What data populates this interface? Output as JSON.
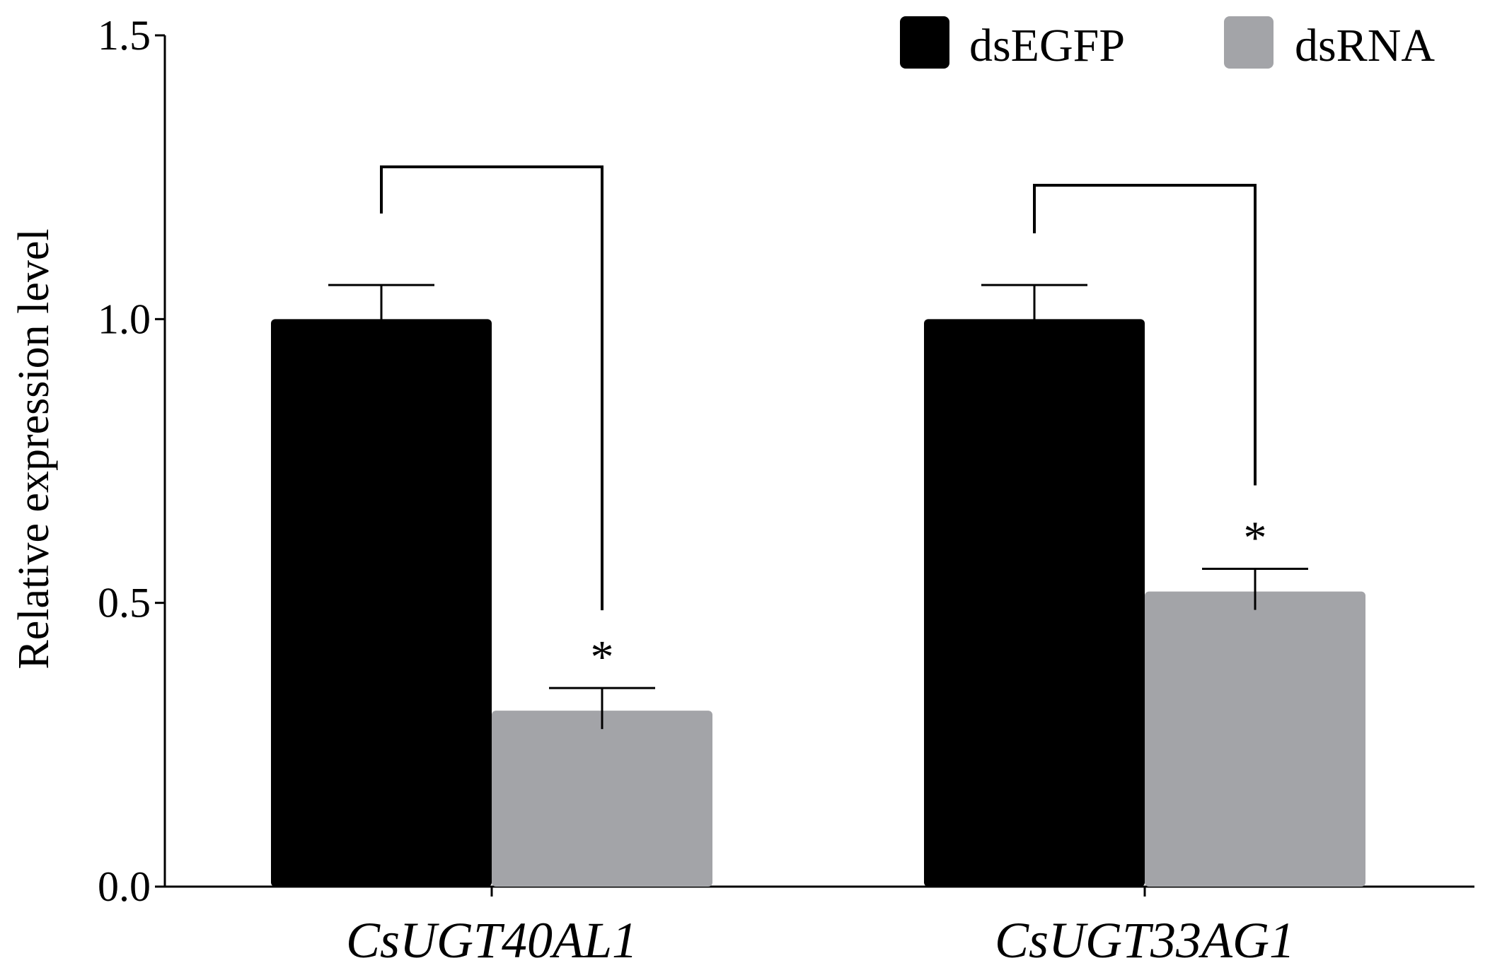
{
  "chart_data": {
    "type": "bar",
    "categories": [
      "CsUGT40AL1",
      "CsUGT33AG1"
    ],
    "series": [
      {
        "name": "dsEGFP",
        "values": [
          1.0,
          1.0
        ],
        "errors": [
          0.06,
          0.06
        ],
        "color": "#000000"
      },
      {
        "name": "dsRNA",
        "values": [
          0.31,
          0.52
        ],
        "errors": [
          0.04,
          0.04
        ],
        "color": "#a3a4a8"
      }
    ],
    "significance": [
      "*",
      "*"
    ],
    "ylabel": "Relative expression level",
    "xlabel": "",
    "ylim": [
      0,
      1.5
    ],
    "yticks": [
      0.0,
      0.5,
      1.0,
      1.5
    ],
    "ytick_labels": [
      "0.0",
      "0.5",
      "1.0",
      "1.5"
    ],
    "grid": false,
    "legend_position": "top-right"
  }
}
